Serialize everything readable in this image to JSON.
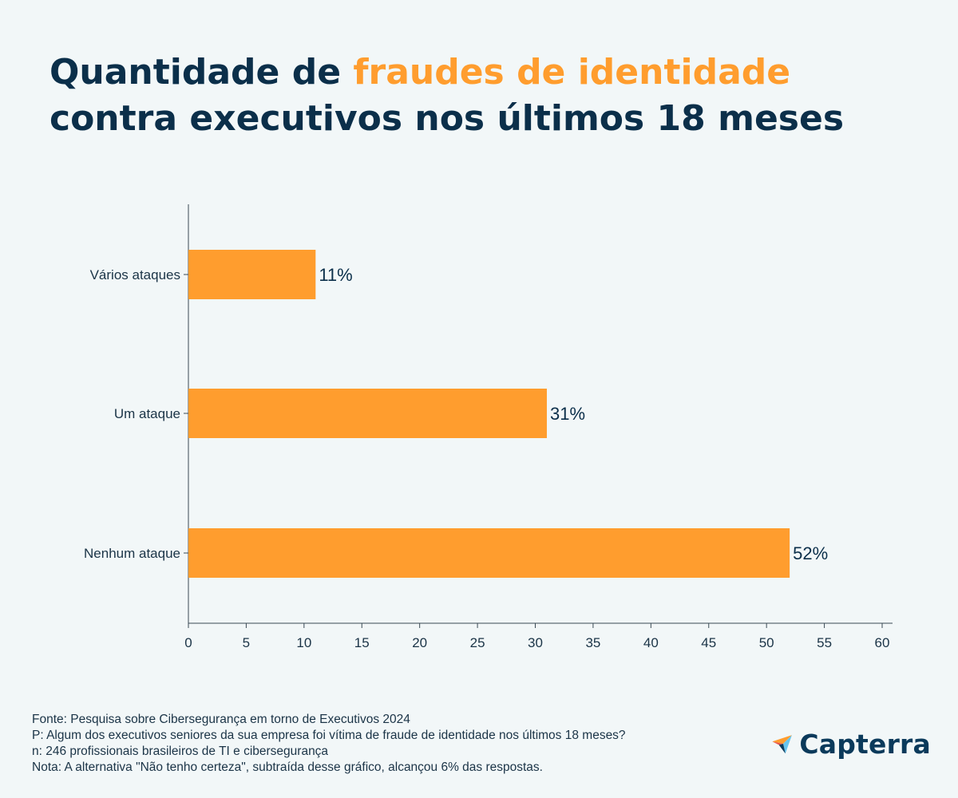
{
  "title": {
    "part1": "Quantidade de ",
    "highlight": "fraudes de identidade",
    "line2": "contra executivos nos últimos 18 meses"
  },
  "colors": {
    "accent": "#ff9d2e",
    "bar": "#ff9d2e",
    "text": "#0b2f4a",
    "background": "#f2f7f8"
  },
  "chart_data": {
    "type": "bar",
    "orientation": "horizontal",
    "categories": [
      "Vários ataques",
      "Um ataque",
      "Nenhum ataque"
    ],
    "values": [
      11,
      31,
      52
    ],
    "value_labels": [
      "11%",
      "31%",
      "52%"
    ],
    "xlim": [
      0,
      60
    ],
    "xticks": [
      0,
      5,
      10,
      15,
      20,
      25,
      30,
      35,
      40,
      45,
      50,
      55,
      60
    ],
    "grid": false
  },
  "footer": {
    "source": "Fonte: Pesquisa sobre Cibersegurança em torno de Executivos 2024",
    "question": "P: Algum dos executivos seniores da sua empresa foi vítima de fraude de identidade nos últimos 18 meses?",
    "sample": "n: 246 profissionais brasileiros de TI e cibersegurança",
    "note": "Nota: A alternativa \"Não tenho certeza\", subtraída desse gráfico, alcançou 6% das respostas."
  },
  "logo": {
    "text": "Capterra",
    "icon": "capterra-arrow-icon"
  }
}
